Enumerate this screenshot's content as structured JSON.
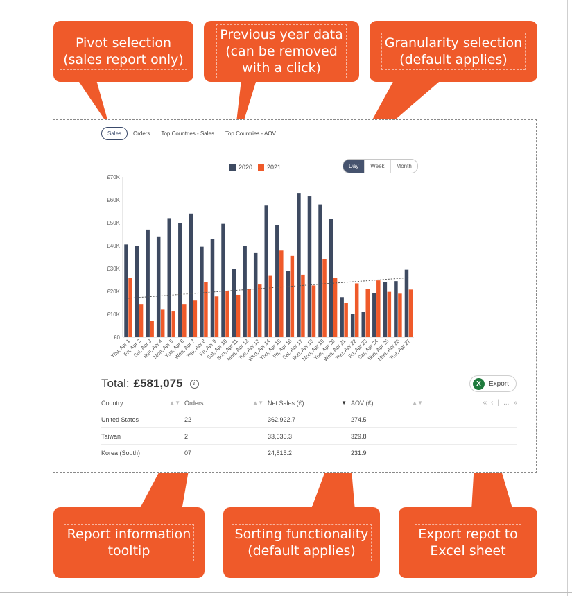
{
  "callouts": {
    "pivot": "Pivot selection\n(sales report only)",
    "prev_year": "Previous year data\n(can be removed\nwith a click)",
    "granularity": "Granularity selection\n(default applies)",
    "tooltip": "Report information\ntooltip",
    "sorting": "Sorting functionality\n(default applies)",
    "export": "Export repot to\nExcel sheet"
  },
  "pivot_tabs": [
    "Sales",
    "Orders",
    "Top Countries - Sales",
    "Top Countries - AOV"
  ],
  "granularity": {
    "options": [
      "Day",
      "Week",
      "Month"
    ],
    "selected": "Day"
  },
  "colors": {
    "s2020": "#3e4a61",
    "s2021": "#ef5a2a",
    "callout": "#ef5a2a",
    "trend": "#555555"
  },
  "total": {
    "label": "Total:",
    "value": "£581,075"
  },
  "export_label": "Export",
  "export_icon": "X",
  "table": {
    "columns": [
      "Country",
      "Orders",
      "Net Sales (£)",
      "AOV (£)"
    ],
    "sorted_column": "Net Sales (£)",
    "pager": [
      "«",
      "‹",
      "|",
      "...",
      "»"
    ],
    "rows": [
      [
        "United States",
        "22",
        "362,922.7",
        "274.5"
      ],
      [
        "Taiwan",
        "2",
        "33,635.3",
        "329.8"
      ],
      [
        "Korea (South)",
        "07",
        "24,815.2",
        "231.9"
      ]
    ]
  },
  "chart_data": {
    "type": "bar",
    "categories": [
      "Thu, Apr 1",
      "Fri, Apr 2",
      "Sat, Apr 3",
      "Sun, Apr 4",
      "Mon, Apr 5",
      "Tue, Apr 6",
      "Wed, Apr 7",
      "Thu, Apr 8",
      "Fri, Apr 9",
      "Sat, Apr 10",
      "Sun, Apr 11",
      "Mon, Apr 12",
      "Tue, Apr 13",
      "Wed, Apr 14",
      "Thu, Apr 15",
      "Fri, Apr 16",
      "Sat, Apr 17",
      "Sun, Apr 18",
      "Mon, Apr 19",
      "Tue, Apr 20",
      "Wed, Apr 21",
      "Thu, Apr 22",
      "Fri, Apr 23",
      "Sat, Apr 24",
      "Sun, Apr 25",
      "Mon, Apr 26",
      "Tue, Apr 27"
    ],
    "series": [
      {
        "name": "2020",
        "values": [
          40500,
          39800,
          47000,
          44000,
          52000,
          50000,
          54000,
          39500,
          43000,
          49500,
          30000,
          39800,
          37000,
          57500,
          48800,
          28800,
          63000,
          61500,
          58000,
          51800,
          17500,
          10000,
          11000,
          19200,
          24000,
          24500,
          29500
        ]
      },
      {
        "name": "2021",
        "values": [
          26000,
          14500,
          7000,
          12000,
          11500,
          14500,
          16000,
          24200,
          17800,
          20300,
          18500,
          21000,
          23000,
          26800,
          37800,
          35500,
          27300,
          22600,
          34000,
          25800,
          15000,
          23500,
          21200,
          24800,
          19800,
          19000,
          20800
        ]
      }
    ],
    "trendline": {
      "series": "2021",
      "start": 17000,
      "end": 26000
    },
    "y_ticks": [
      "£0",
      "£10K",
      "£20K",
      "£30K",
      "£40K",
      "£50K",
      "£60K",
      "£70K"
    ],
    "ylim": [
      0,
      70000
    ],
    "legend_position": "top-center",
    "grid": false
  }
}
